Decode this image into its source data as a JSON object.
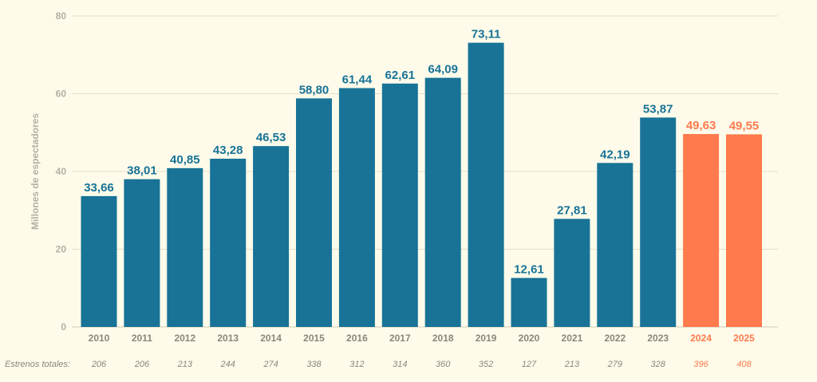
{
  "colors": {
    "primary": "#187397",
    "forecast": "#ff7a4d",
    "tick": "#b3b0a3",
    "background": "#fefbea"
  },
  "chart_data": {
    "type": "bar",
    "title": "",
    "xlabel": "",
    "ylabel": "Millones de espectadores",
    "ylim": [
      0,
      80
    ],
    "yticks": [
      "0",
      "20",
      "40",
      "60",
      "80"
    ],
    "grid": true,
    "categories": [
      "2010",
      "2011",
      "2012",
      "2013",
      "2014",
      "2015",
      "2016",
      "2017",
      "2018",
      "2019",
      "2020",
      "2021",
      "2022",
      "2023",
      "2024",
      "2025"
    ],
    "values": [
      33.66,
      38.01,
      40.85,
      43.28,
      46.53,
      58.8,
      61.44,
      62.61,
      64.09,
      73.11,
      12.61,
      27.81,
      42.19,
      53.87,
      49.63,
      49.55
    ],
    "value_labels": [
      "33,66",
      "38,01",
      "40,85",
      "43,28",
      "46,53",
      "58,80",
      "61,44",
      "62,61",
      "64,09",
      "73,11",
      "12,61",
      "27,81",
      "42,19",
      "53,87",
      "49,63",
      "49,55"
    ],
    "highlighted": [
      "2024",
      "2025"
    ],
    "estrenos_label": "Estrenos totales:",
    "estrenos": [
      "206",
      "206",
      "213",
      "244",
      "274",
      "338",
      "312",
      "314",
      "360",
      "352",
      "127",
      "213",
      "279",
      "328",
      "396",
      "408"
    ]
  }
}
